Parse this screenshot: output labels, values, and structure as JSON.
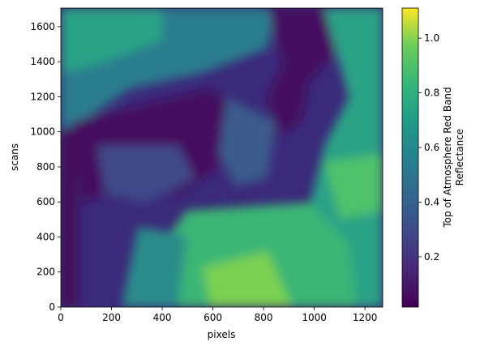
{
  "chart_data": {
    "type": "image",
    "xlabel": "pixels",
    "ylabel": "scans",
    "xlim": [
      0,
      1270
    ],
    "xticks": [
      0,
      200,
      400,
      600,
      800,
      1000,
      1200
    ],
    "ylim": [
      0,
      1706
    ],
    "yticks": [
      0,
      200,
      400,
      600,
      800,
      1000,
      1200,
      1400,
      1600
    ],
    "colormap": "viridis",
    "colorbar_label": "Top of Atmosphere Red Band\nReflectance",
    "clim": [
      0.016,
      1.11
    ],
    "cticks": [
      0.2,
      0.4,
      0.6,
      0.8,
      {
        "value": 1,
        "label": "1.0"
      }
    ]
  }
}
